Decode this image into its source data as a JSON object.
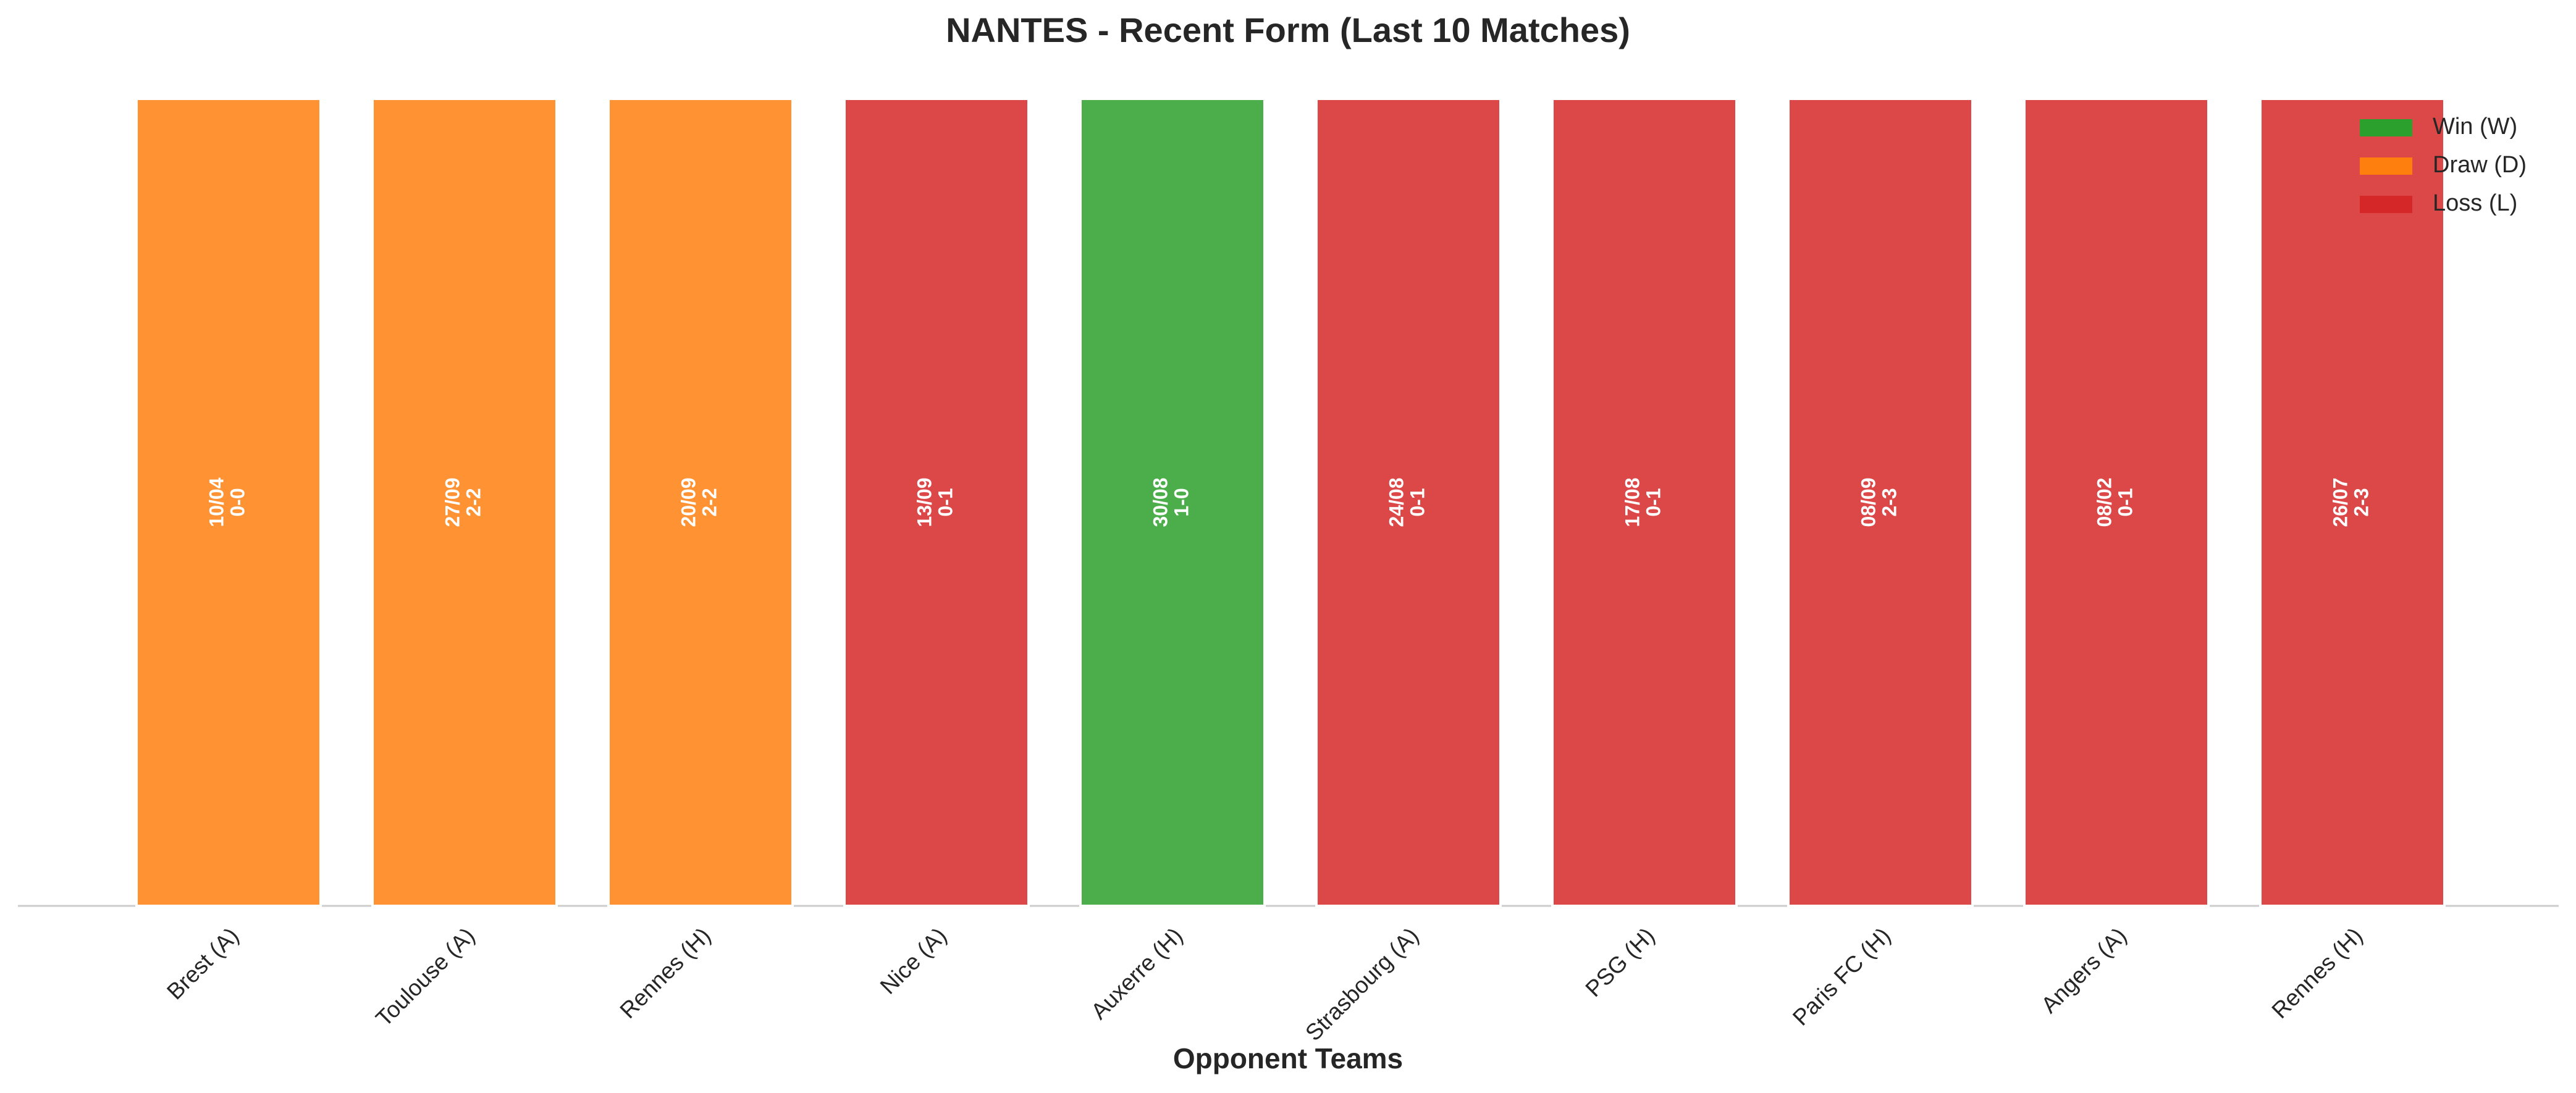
{
  "chart_data": {
    "type": "bar",
    "title": "NANTES - Recent Form (Last 10 Matches)",
    "x_label": "Opponent Teams",
    "categories": [
      "Brest (A)",
      "Toulouse (A)",
      "Rennes (H)",
      "Nice (A)",
      "Auxerre (H)",
      "Strasbourg (A)",
      "PSG (H)",
      "Paris FC (H)",
      "Angers (A)",
      "Rennes (H)"
    ],
    "values": [
      1,
      1,
      1,
      1,
      1,
      1,
      1,
      1,
      1,
      1
    ],
    "dates": [
      "10/04",
      "27/09",
      "20/09",
      "13/09",
      "30/08",
      "24/08",
      "17/08",
      "08/09",
      "08/02",
      "26/07"
    ],
    "scores": [
      "0-0",
      "2-2",
      "2-2",
      "0-1",
      "1-0",
      "0-1",
      "0-1",
      "2-3",
      "0-1",
      "2-3"
    ],
    "colors": [
      "#ff7f0e",
      "#ff7f0e",
      "#ff7f0e",
      "#d62728",
      "#2ca02c",
      "#d62728",
      "#d62728",
      "#d62728",
      "#d62728",
      "#d62728"
    ],
    "ylim": [
      0,
      1
    ],
    "legend_position": "upper right",
    "legend": [
      {
        "name": "Win (W)",
        "color": "#2ca02c"
      },
      {
        "name": "Draw (D)",
        "color": "#ff7f0e"
      },
      {
        "name": "Loss (L)",
        "color": "#d62728"
      }
    ]
  }
}
